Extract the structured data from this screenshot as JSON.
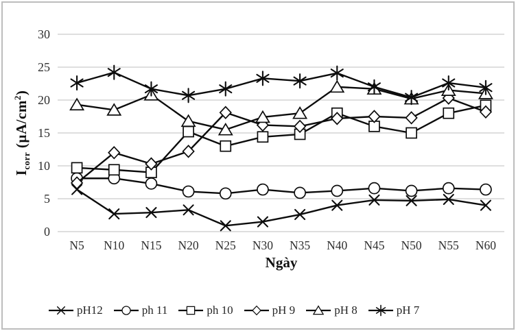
{
  "figure": {
    "background": "#ffffff",
    "border_color": "#bcbcbc"
  },
  "chart_data": {
    "type": "line",
    "title": "",
    "xlabel": "Ngày",
    "ylabel": "Icorr (µA/cm2)",
    "ylabel_parts": {
      "base": "I",
      "sub": "corr",
      "mid": " (µA/cm",
      "sup": "2",
      "end": ")"
    },
    "categories": [
      "N5",
      "N10",
      "N15",
      "N20",
      "N25",
      "N30",
      "N35",
      "N40",
      "N45",
      "N50",
      "N55",
      "N60"
    ],
    "yticks": [
      0,
      5,
      10,
      15,
      20,
      25,
      30
    ],
    "ylim": [
      0,
      30
    ],
    "grid": "horizontal",
    "legend_position": "bottom",
    "style": {
      "series_color": "#0c0c0c",
      "gridline_color": "#c9c9c9",
      "tick_label_color": "#303030",
      "marker_fill": "#ffffff"
    },
    "series": [
      {
        "name": "pH12",
        "marker": "x",
        "values": [
          6.4,
          2.7,
          2.9,
          3.3,
          0.9,
          1.5,
          2.6,
          4.0,
          4.8,
          4.7,
          4.9,
          4.0
        ]
      },
      {
        "name": "ph 11",
        "marker": "circle",
        "values": [
          8.1,
          8.1,
          7.3,
          6.1,
          5.8,
          6.4,
          5.9,
          6.2,
          6.6,
          6.2,
          6.6,
          6.4
        ]
      },
      {
        "name": "ph 10",
        "marker": "square",
        "values": [
          9.7,
          9.4,
          9.0,
          15.2,
          13.0,
          14.4,
          14.8,
          18.0,
          16.0,
          15.0,
          18.0,
          19.2
        ]
      },
      {
        "name": "pH 9",
        "marker": "diamond",
        "values": [
          7.4,
          12.0,
          10.3,
          12.2,
          18.1,
          16.2,
          16.0,
          17.2,
          17.5,
          17.3,
          20.3,
          18.2
        ]
      },
      {
        "name": "pH 8",
        "marker": "triangle",
        "values": [
          19.3,
          18.5,
          20.8,
          16.8,
          15.5,
          17.4,
          18.0,
          22.0,
          21.7,
          20.2,
          21.5,
          21.0
        ]
      },
      {
        "name": "pH 7",
        "marker": "asterisk",
        "values": [
          22.6,
          24.2,
          21.7,
          20.7,
          21.7,
          23.3,
          22.9,
          24.1,
          22.0,
          20.4,
          22.6,
          21.9
        ]
      }
    ]
  }
}
